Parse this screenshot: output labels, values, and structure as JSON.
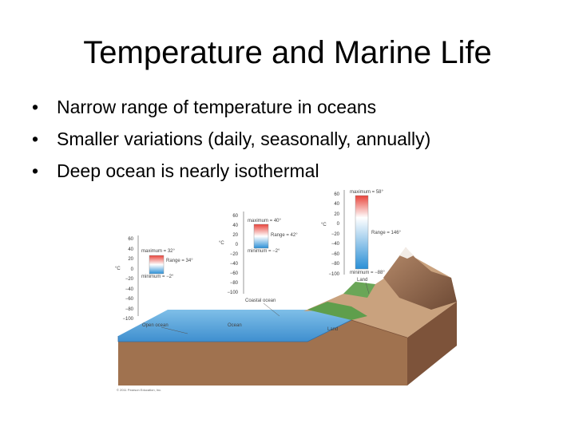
{
  "slide": {
    "title": "Temperature and Marine Life",
    "bullets": [
      "Narrow range of temperature in oceans",
      "Smaller variations (daily, seasonally, annually)",
      "Deep ocean is nearly isothermal"
    ]
  },
  "figure": {
    "unit": "°C",
    "open_ocean": {
      "ticks": [
        "60",
        "40",
        "20",
        "0",
        "−20",
        "−40",
        "−60",
        "−80",
        "−100"
      ],
      "maximum": "maximum = 32°",
      "range": "Range = 34°",
      "minimum": "minimum = −2°",
      "label": "Open ocean"
    },
    "coastal_ocean": {
      "ticks": [
        "60",
        "40",
        "20",
        "0",
        "−20",
        "−40",
        "−60",
        "−80",
        "−100"
      ],
      "maximum": "maximum = 40°",
      "range": "Range = 42°",
      "minimum": "minimum = −2°",
      "label": "Coastal ocean"
    },
    "land": {
      "ticks": [
        "60",
        "40",
        "20",
        "0",
        "−20",
        "−40",
        "−60",
        "−80",
        "−100"
      ],
      "maximum": "maximum = 58°",
      "range": "Range = 146°",
      "minimum": "minimum = −88°",
      "label": "Land"
    },
    "ocean_label": "Ocean",
    "land_label": "Land",
    "copyright": "© 2011 Pearson Education, Inc."
  },
  "colors": {
    "warm": "#e8433a",
    "cold": "#2a8fd6",
    "ocean": "#5ea9dd",
    "crust": "#a0724f"
  }
}
